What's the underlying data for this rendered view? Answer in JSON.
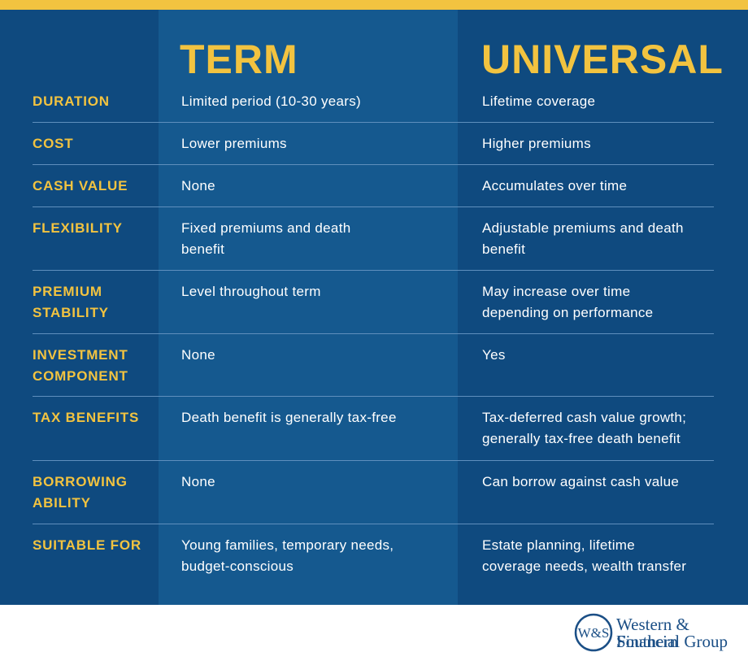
{
  "header": {
    "columns": [
      "TERM",
      "UNIVERSAL"
    ]
  },
  "table": {
    "rows": [
      {
        "label": [
          "DURATION"
        ],
        "term": [
          "Limited period (10-30 years)"
        ],
        "universal": [
          "Lifetime coverage"
        ]
      },
      {
        "label": [
          "COST"
        ],
        "term": [
          "Lower premiums"
        ],
        "universal": [
          "Higher premiums"
        ]
      },
      {
        "label": [
          "CASH VALUE"
        ],
        "term": [
          "None"
        ],
        "universal": [
          "Accumulates over time"
        ]
      },
      {
        "label": [
          "FLEXIBILITY"
        ],
        "term": [
          "Fixed premiums and death",
          "benefit"
        ],
        "universal": [
          "Adjustable premiums and death",
          "benefit"
        ]
      },
      {
        "label": [
          "PREMIUM",
          "STABILITY"
        ],
        "term": [
          "Level throughout term"
        ],
        "universal": [
          "May increase over time",
          "depending on performance"
        ]
      },
      {
        "label": [
          "INVESTMENT",
          "COMPONENT"
        ],
        "term": [
          "None"
        ],
        "universal": [
          "Yes"
        ]
      },
      {
        "label": [
          "TAX BENEFITS"
        ],
        "term": [
          "Death benefit is generally tax-free"
        ],
        "universal": [
          "Tax-deferred cash value growth;",
          "generally tax-free death benefit"
        ]
      },
      {
        "label": [
          "BORROWING",
          "ABILITY"
        ],
        "term": [
          "None"
        ],
        "universal": [
          "Can borrow against cash value"
        ]
      },
      {
        "label": [
          "SUITABLE FOR"
        ],
        "term": [
          "Young families, temporary needs,",
          "budget-conscious"
        ],
        "universal": [
          "Estate planning, lifetime",
          "coverage needs, wealth transfer"
        ]
      }
    ]
  },
  "logo": {
    "mark": "W&S",
    "lines": [
      "Western & Southern",
      "Financial Group"
    ]
  }
}
